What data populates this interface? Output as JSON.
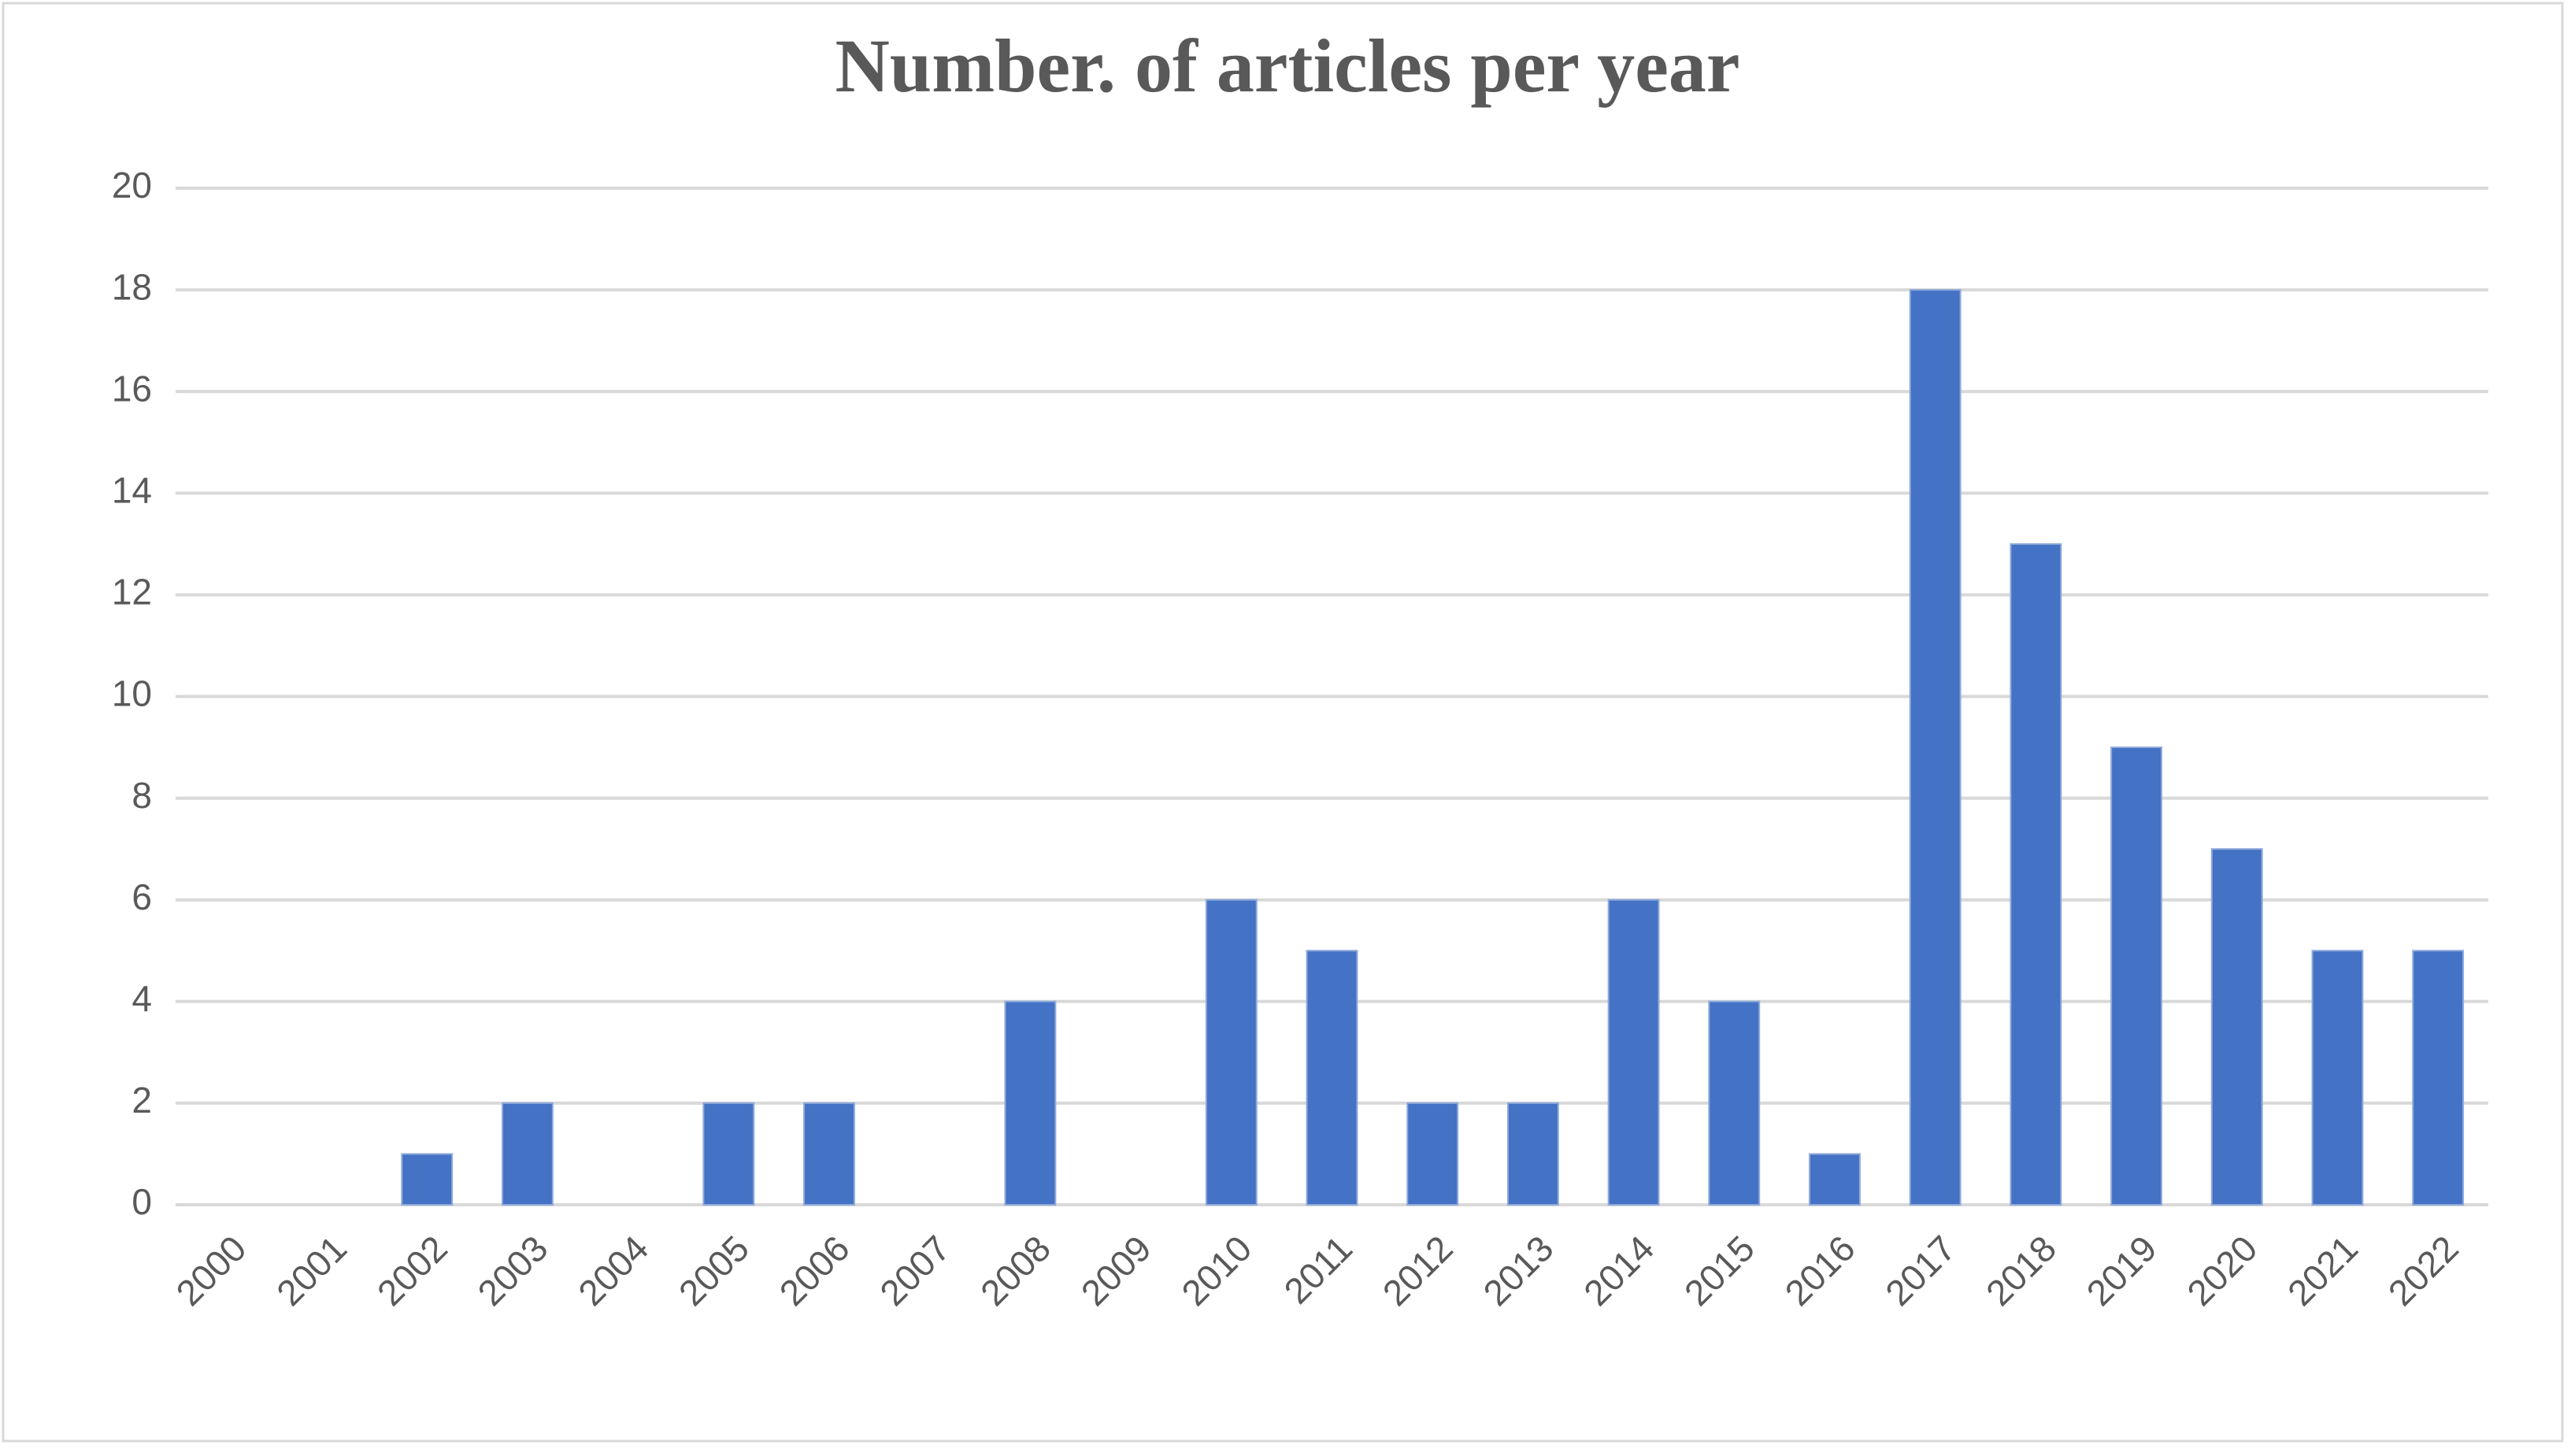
{
  "chart_data": {
    "type": "bar",
    "title": "Number. of articles per year",
    "categories": [
      "2000",
      "2001",
      "2002",
      "2003",
      "2004",
      "2005",
      "2006",
      "2007",
      "2008",
      "2009",
      "2010",
      "2011",
      "2012",
      "2013",
      "2014",
      "2015",
      "2016",
      "2017",
      "2018",
      "2019",
      "2020",
      "2021",
      "2022"
    ],
    "values": [
      0,
      0,
      1,
      2,
      0,
      2,
      2,
      0,
      4,
      0,
      6,
      5,
      2,
      2,
      6,
      4,
      1,
      18,
      13,
      9,
      7,
      5,
      5
    ],
    "color": "#4472c4",
    "ylim": [
      0,
      20
    ],
    "yticks": [
      0,
      2,
      4,
      6,
      8,
      10,
      12,
      14,
      16,
      18,
      20
    ],
    "grid": true
  }
}
